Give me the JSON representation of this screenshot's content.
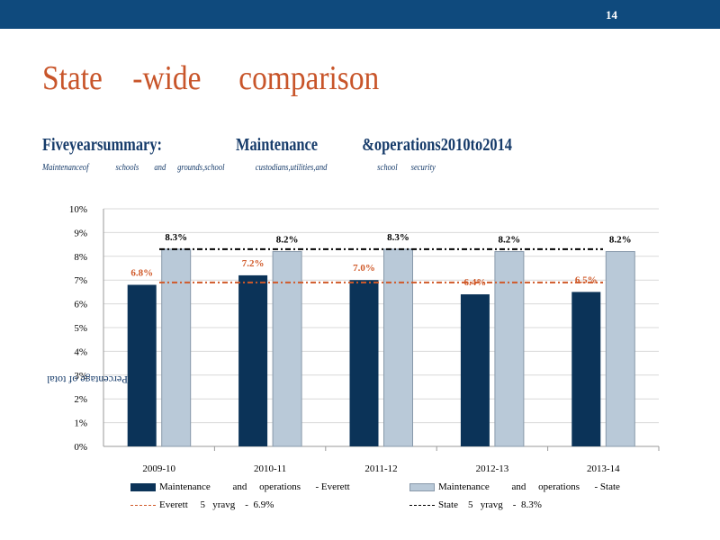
{
  "header": {
    "page_number": "14"
  },
  "slide_title": "State    -wide     comparison",
  "subtitle": "Fiveyearsummary:                    Maintenance            &operations2010to2014",
  "note": "Maintenanceof              schools        and      grounds,school                custodians,utilities,and                          school       security",
  "colors": {
    "everett_bar": "#0b3358",
    "state_bar": "#b9c9d8",
    "everett_avg_line": "#d05a2a",
    "state_avg_line": "#000000",
    "title": "#c8552a",
    "header_bar": "#0f4a7d"
  },
  "legend": {
    "everett_bar": "Maintenance         and     operations      - Everett",
    "state_bar": "Maintenance         and     operations      - State",
    "everett_avg": "Everett     5   yravg    -  6.9%",
    "state_avg": "State    5   yravg    -  8.3%"
  },
  "chart_data": {
    "type": "bar",
    "categories": [
      "2009-10",
      "2010-11",
      "2011-12",
      "2012-13",
      "2013-14"
    ],
    "series": [
      {
        "name": "Maintenance         and     operations      - Everett",
        "values": [
          6.8,
          7.2,
          7.0,
          6.4,
          6.5
        ],
        "labels": [
          "6.8%",
          "7.2%",
          "7.0%",
          "6.4%",
          "6.5%"
        ]
      },
      {
        "name": "Maintenance         and     operations      - State",
        "values": [
          8.3,
          8.2,
          8.3,
          8.2,
          8.2
        ],
        "labels": [
          "8.3%",
          "8.2%",
          "8.3%",
          "8.2%",
          "8.2%"
        ]
      }
    ],
    "reference_lines": [
      {
        "name": "Everett     5   yravg    -  6.9%",
        "value": 6.9
      },
      {
        "name": "State    5   yravg    -  8.3%",
        "value": 8.3
      }
    ],
    "ylabel": "Percentage of total",
    "ylabel_rendering": "mirrored",
    "ylim": [
      0,
      10
    ],
    "y_ticks": [
      "0%",
      "1%",
      "2%",
      "3%",
      "4%",
      "5%",
      "6%",
      "7%",
      "8%",
      "9%",
      "10%"
    ],
    "grid": true,
    "legend_position": "bottom"
  }
}
